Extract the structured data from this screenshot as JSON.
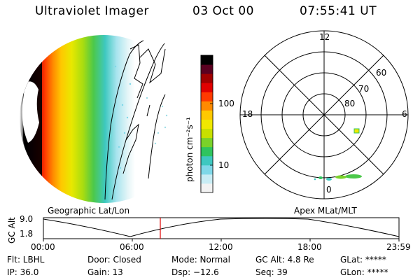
{
  "header": {
    "title": "Ultraviolet Imager",
    "date": "03 Oct 00",
    "time": "07:55:41 UT"
  },
  "colorbar": {
    "label": "photon cm⁻²s⁻¹",
    "tick_100": "100",
    "tick_10": "10",
    "scale": "log",
    "colors": [
      "#f2f2f2",
      "#c8ecf4",
      "#7fd8e8",
      "#3ec8c0",
      "#2fc45e",
      "#7ad22a",
      "#c8e000",
      "#f0e800",
      "#ffc800",
      "#ff8a00",
      "#ff3a00",
      "#e00000",
      "#a00000",
      "#5a0020",
      "#000000"
    ]
  },
  "polar_plot": {
    "labels_mlt": [
      "12",
      "18",
      "6",
      "0"
    ],
    "labels_lat": [
      "60",
      "70",
      "80"
    ]
  },
  "timeline": {
    "y_axis_label": "GC Alt",
    "y_ticks": [
      "9.0",
      "1.8"
    ],
    "left_label": "Geographic Lat/Lon",
    "right_label": "Apex MLat/MLT",
    "x_ticks": [
      "00:00",
      "06:00",
      "12:00",
      "18:00",
      "23:59"
    ],
    "marker_color": "#e00000"
  },
  "status": {
    "flt": "Flt: LBHL",
    "ip": "IP: 36.0",
    "door": "Door: Closed",
    "gain": "Gain: 13",
    "mode": "Mode: Normal",
    "dsp": "Dsp:  −12.6",
    "gcalt": "GC Alt: 4.8 Re",
    "seq": "Seq: 39",
    "glat": "GLat: *****",
    "glon": "GLon: *****"
  }
}
